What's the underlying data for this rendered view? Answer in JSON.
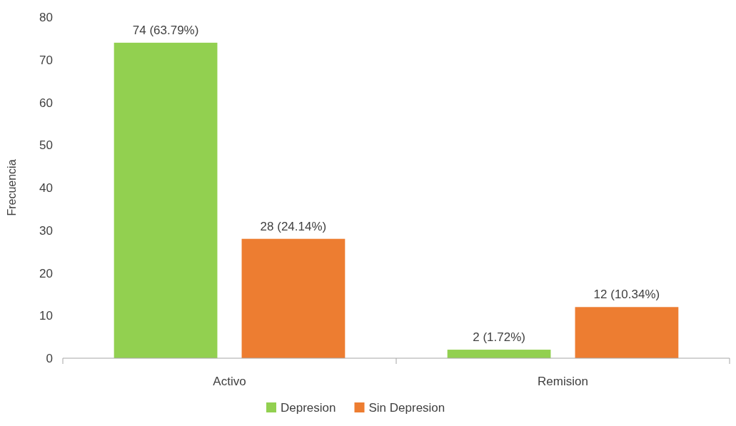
{
  "chart_data": {
    "type": "bar",
    "ylabel": "Frecuencia",
    "categories": [
      "Activo",
      "Remision"
    ],
    "series": [
      {
        "name": "Depresion",
        "color": "#92d050",
        "values": [
          74,
          2
        ],
        "value_labels": [
          "74 (63.79%)",
          "2 (1.72%)"
        ]
      },
      {
        "name": "Sin Depresion",
        "color": "#ed7d31",
        "values": [
          28,
          12
        ],
        "value_labels": [
          "28 (24.14%)",
          "12 (10.34%)"
        ]
      }
    ],
    "ylim": [
      0,
      80
    ],
    "yticks": [
      0,
      10,
      20,
      30,
      40,
      50,
      60,
      70,
      80
    ],
    "grid": false,
    "legend": "bottom"
  }
}
